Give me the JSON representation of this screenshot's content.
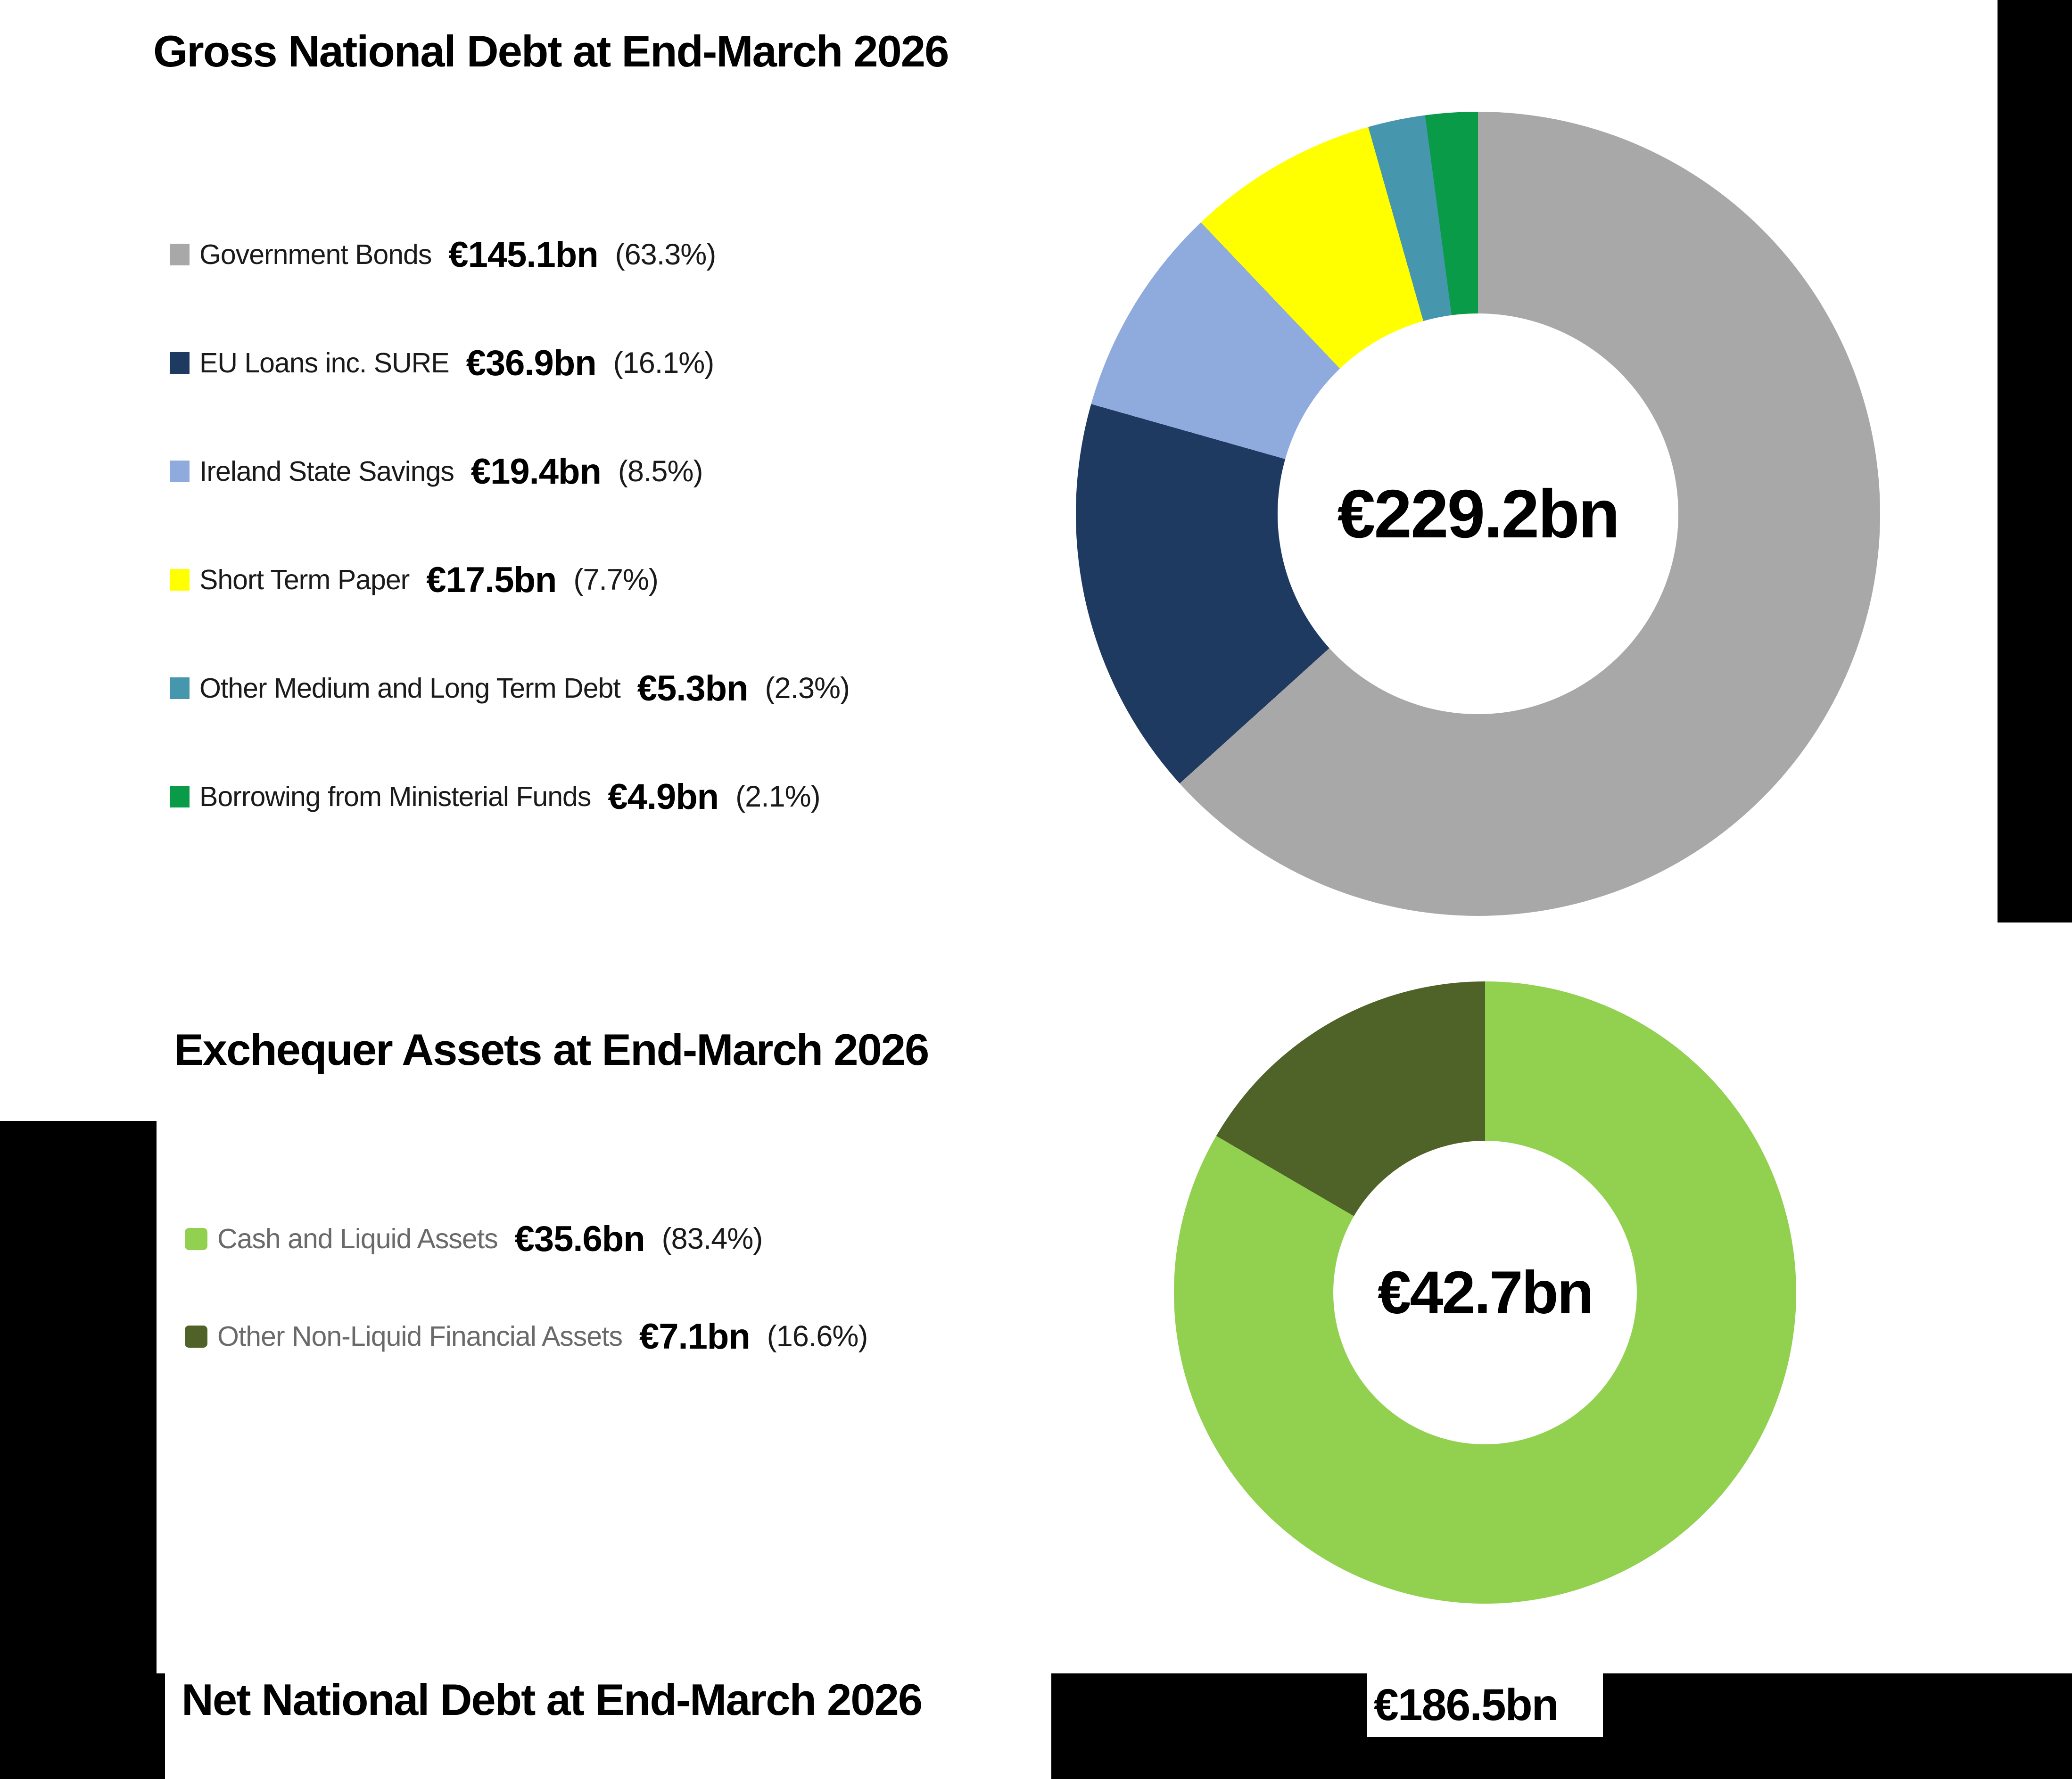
{
  "sections": {
    "gross": {
      "title": "Gross National Debt at End-March 2026",
      "center_label": "€229.2bn"
    },
    "assets": {
      "title": "Exchequer Assets at End-March 2026",
      "center_label": "€42.7bn"
    },
    "net": {
      "title": "Net National Debt at End-March 2026",
      "value": "€186.5bn"
    }
  },
  "chart_data": [
    {
      "type": "pie",
      "subtype": "donut",
      "title": "Gross National Debt at End-March 2026",
      "total_label": "€229.2bn",
      "total_value_bn": 229.2,
      "unit": "€bn",
      "legend_position": "left",
      "start_angle_deg": 0,
      "direction": "clockwise",
      "segments": [
        {
          "label": "Government Bonds",
          "value": "€145.1bn",
          "value_bn": 145.1,
          "percent": "(63.3%)",
          "pct": 63.3,
          "color": "#a8a8a8"
        },
        {
          "label": "EU Loans inc. SURE",
          "value": "€36.9bn",
          "value_bn": 36.9,
          "percent": "(16.1%)",
          "pct": 16.1,
          "color": "#1f3a60"
        },
        {
          "label": "Ireland State Savings",
          "value": "€19.4bn",
          "value_bn": 19.4,
          "percent": "(8.5%)",
          "pct": 8.5,
          "color": "#8faadc"
        },
        {
          "label": "Short Term Paper",
          "value": "€17.5bn",
          "value_bn": 17.5,
          "percent": "(7.7%)",
          "pct": 7.7,
          "color": "#ffff00"
        },
        {
          "label": "Other Medium and Long Term Debt",
          "value": "€5.3bn",
          "value_bn": 5.3,
          "percent": "(2.3%)",
          "pct": 2.3,
          "color": "#4697ae"
        },
        {
          "label": "Borrowing from Ministerial Funds",
          "value": "€4.9bn",
          "value_bn": 4.9,
          "percent": "(2.1%)",
          "pct": 2.1,
          "color": "#0a9b48"
        }
      ]
    },
    {
      "type": "pie",
      "subtype": "donut",
      "title": "Exchequer Assets at End-March 2026",
      "total_label": "€42.7bn",
      "total_value_bn": 42.7,
      "unit": "€bn",
      "legend_position": "left",
      "start_angle_deg": 0,
      "direction": "clockwise",
      "segments": [
        {
          "label": "Cash and Liquid Assets",
          "value": "€35.6bn",
          "value_bn": 35.6,
          "percent": "(83.4%)",
          "pct": 83.4,
          "color": "#92d050"
        },
        {
          "label": "Other Non-Liquid Financial Assets",
          "value": "€7.1bn",
          "value_bn": 7.1,
          "percent": "(16.6%)",
          "pct": 16.6,
          "color": "#4f6228"
        }
      ]
    }
  ]
}
